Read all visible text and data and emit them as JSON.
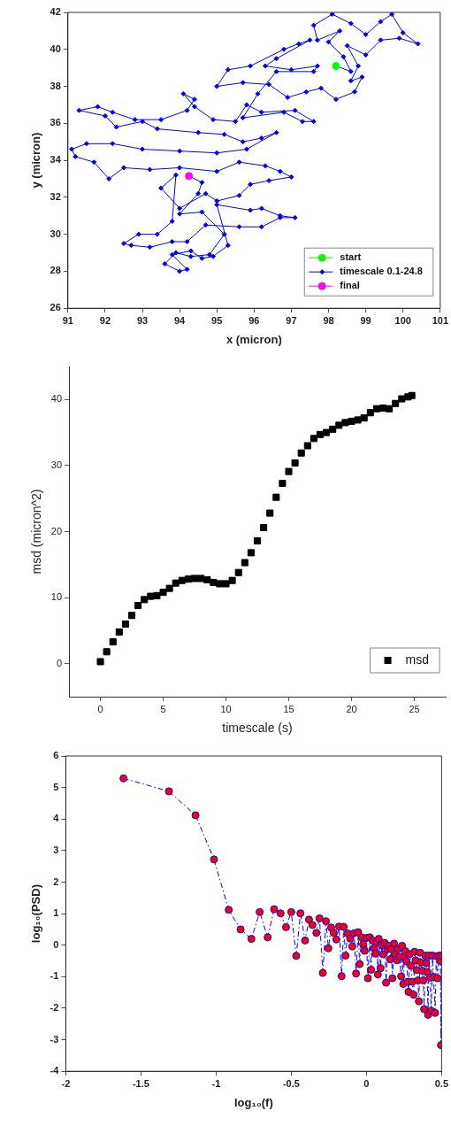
{
  "chart_data": [
    {
      "type": "line",
      "xlabel": "x (micron)",
      "ylabel": "y (micron)",
      "xlim": [
        91,
        101
      ],
      "xticks": [
        91,
        92,
        93,
        94,
        95,
        96,
        97,
        98,
        99,
        100,
        101
      ],
      "ylim": [
        26,
        42
      ],
      "yticks": [
        26,
        28,
        30,
        32,
        34,
        36,
        38,
        40,
        42
      ],
      "legend": "bottom right",
      "series": [
        {
          "name": "start",
          "type": "scatter",
          "marker": "circle",
          "color": "#00ff00",
          "x": [
            98.2
          ],
          "values": [
            39.1
          ]
        },
        {
          "name": "timescale 0.1-24.8",
          "marker": "diamond",
          "color": "#0000ff",
          "x": [
            98.2,
            98.6,
            98.4,
            98.0,
            98.3,
            97.7,
            97.6,
            98.1,
            98.6,
            99.0,
            99.4,
            99.7,
            100.0,
            100.4,
            99.9,
            99.4,
            99.0,
            98.5,
            98.8,
            98.6,
            98.9,
            98.7,
            98.2,
            97.8,
            97.4,
            96.9,
            96.4,
            95.7,
            95.0,
            95.3,
            95.9,
            96.8,
            97.2,
            97.5,
            96.6,
            96.3,
            97.0,
            97.7,
            97.6,
            96.6,
            96.1,
            95.7,
            96.8,
            97.3,
            97.6,
            97.1,
            96.2,
            95.8,
            95.5,
            94.9,
            94.4,
            94.1,
            94.4,
            94.2,
            93.5,
            92.8,
            92.2,
            91.8,
            91.3,
            92.0,
            92.3,
            93.0,
            93.4,
            94.5,
            95.2,
            95.7,
            96.2,
            96.6,
            95.8,
            95.0,
            94.0,
            93.0,
            92.2,
            91.5,
            91.1,
            91.2,
            91.7,
            92.1,
            92.5,
            93.2,
            94.0,
            95.0,
            95.6,
            96.3,
            96.7,
            97.0,
            96.4,
            95.9,
            95.6,
            95.0,
            94.7,
            94.0,
            93.5,
            93.9,
            93.8,
            93.4,
            92.9,
            92.5,
            92.7,
            93.2,
            93.8,
            94.2,
            94.7,
            95.6,
            96.2,
            96.7,
            97.1,
            96.7,
            96.2,
            95.9,
            95.0,
            95.3,
            94.9,
            94.6,
            94.3,
            93.8,
            94.2,
            94.0,
            93.6,
            93.9,
            94.3,
            94.8,
            95.2,
            94.6,
            94.0,
            94.5,
            94.6,
            94.25
          ],
          "values": [
            39.1,
            38.8,
            39.6,
            40.4,
            41.0,
            40.5,
            41.3,
            41.9,
            41.4,
            40.8,
            41.5,
            41.9,
            40.9,
            40.3,
            40.6,
            40.5,
            39.7,
            40.2,
            39.1,
            38.3,
            38.5,
            37.7,
            37.3,
            37.9,
            37.7,
            37.4,
            38.1,
            38.2,
            38.0,
            38.9,
            39.1,
            40.0,
            40.3,
            40.5,
            39.5,
            39.1,
            38.9,
            39.1,
            38.8,
            38.8,
            37.6,
            36.3,
            36.6,
            36.1,
            36.1,
            36.7,
            36.6,
            37.0,
            36.1,
            36.2,
            36.9,
            37.6,
            37.3,
            36.7,
            36.2,
            36.2,
            36.6,
            36.9,
            36.7,
            36.4,
            35.8,
            36.1,
            35.7,
            35.5,
            35.4,
            35.0,
            35.2,
            35.5,
            34.6,
            34.4,
            34.5,
            34.6,
            34.9,
            34.9,
            34.6,
            34.2,
            33.9,
            33.0,
            33.6,
            33.5,
            33.6,
            33.4,
            33.9,
            33.7,
            33.4,
            33.1,
            32.9,
            32.7,
            32.1,
            31.8,
            32.2,
            31.4,
            32.5,
            33.2,
            30.7,
            30.0,
            30.0,
            29.5,
            29.4,
            29.3,
            29.6,
            29.6,
            30.5,
            30.4,
            30.4,
            30.9,
            30.9,
            31.0,
            31.4,
            31.3,
            31.6,
            29.4,
            28.8,
            28.7,
            29.1,
            28.9,
            28.1,
            28.0,
            28.4,
            29.0,
            28.8,
            28.9,
            30.0,
            31.2,
            31.1,
            32.2,
            32.8,
            33.15
          ]
        },
        {
          "name": "final",
          "type": "scatter",
          "marker": "circle",
          "color": "#ff00ff",
          "x": [
            94.25
          ],
          "values": [
            33.15
          ]
        }
      ]
    },
    {
      "type": "scatter",
      "xlabel": "timescale (s)",
      "ylabel": "msd (micron^2)",
      "xlim": [
        -2.5,
        27.5
      ],
      "xticks": [
        0,
        5,
        10,
        15,
        20,
        25
      ],
      "ylim": [
        -5,
        45
      ],
      "yticks": [
        0,
        10,
        20,
        30,
        40
      ],
      "legend": "bottom right",
      "marker": "square",
      "series": [
        {
          "name": "msd",
          "color": "#000000",
          "x": [
            0,
            0.5,
            1,
            1.5,
            2,
            2.5,
            3,
            3.5,
            4,
            4.5,
            5,
            5.5,
            6,
            6.5,
            7,
            7.5,
            8,
            8.5,
            9,
            9.5,
            10,
            10.5,
            11,
            11.5,
            12,
            12.5,
            13,
            13.5,
            14,
            14.5,
            15,
            15.5,
            16,
            16.5,
            17,
            17.5,
            18,
            18.5,
            19,
            19.5,
            20,
            20.5,
            21,
            21.5,
            22,
            22.5,
            23,
            23.5,
            24,
            24.5,
            24.8
          ],
          "values": [
            0.3,
            1.8,
            3.3,
            4.8,
            6,
            7.3,
            8.8,
            9.7,
            10.2,
            10.3,
            10.8,
            11.4,
            12.2,
            12.6,
            12.8,
            12.9,
            12.9,
            12.7,
            12.3,
            12.1,
            12.1,
            12.6,
            13.8,
            15.3,
            16.8,
            18.6,
            20.6,
            22.8,
            25.2,
            27.3,
            29.1,
            30.4,
            31.9,
            33.0,
            34.1,
            34.7,
            35.0,
            35.5,
            36.1,
            36.5,
            36.7,
            36.9,
            37.2,
            38.0,
            38.6,
            38.7,
            38.6,
            39.4,
            40.1,
            40.4,
            40.6
          ]
        }
      ]
    },
    {
      "type": "line",
      "xlabel": "log₁₀(f)",
      "ylabel": "log₁₀(PSD)",
      "xlim": [
        -2,
        0.5
      ],
      "xticks": [
        -2,
        -1.5,
        -1,
        -0.5,
        0,
        0.5
      ],
      "ylim": [
        -4,
        6
      ],
      "yticks": [
        -4,
        -3,
        -2,
        -1,
        0,
        1,
        2,
        3,
        4,
        5,
        6
      ],
      "marker": "circle",
      "line_style": "dashed",
      "series": [
        {
          "color": "#0000ff",
          "x": [
            -1.616,
            -1.314,
            -1.137,
            -1.014,
            -0.916,
            -0.837,
            -0.765,
            -0.71,
            -0.657,
            -0.614,
            -0.571,
            -0.535,
            -0.5,
            -0.467,
            -0.439,
            -0.408,
            -0.382,
            -0.359,
            -0.333,
            -0.312,
            -0.29,
            -0.269,
            -0.253,
            -0.235,
            -0.218,
            -0.2,
            -0.182,
            -0.165,
            -0.151,
            -0.139,
            -0.124,
            -0.108,
            -0.094,
            -0.082,
            -0.069,
            -0.055,
            -0.045,
            -0.033,
            -0.022,
            -0.012,
            0.0,
            0.01,
            0.022,
            0.031,
            0.041,
            0.051,
            0.061,
            0.071,
            0.076,
            0.082,
            0.094,
            0.102,
            0.112,
            0.122,
            0.131,
            0.139,
            0.149,
            0.157,
            0.165,
            0.173,
            0.184,
            0.192,
            0.204,
            0.212,
            0.222,
            0.231,
            0.237,
            0.245,
            0.253,
            0.259,
            0.267,
            0.275,
            0.28,
            0.288,
            0.296,
            0.304,
            0.314,
            0.32,
            0.327,
            0.335,
            0.343,
            0.349,
            0.357,
            0.363,
            0.371,
            0.378,
            0.384,
            0.392,
            0.398,
            0.404,
            0.41,
            0.416,
            0.424,
            0.431,
            0.439,
            0.447,
            0.457,
            0.465,
            0.473,
            0.484,
            0.492,
            0.496,
            0.5
          ],
          "values": [
            5.29,
            4.88,
            4.12,
            2.72,
            1.12,
            0.5,
            0.2,
            1.05,
            0.25,
            1.14,
            1.01,
            0.57,
            1.05,
            -0.34,
            1.01,
            0.15,
            0.81,
            0.64,
            0.39,
            0.85,
            -0.88,
            0.76,
            -0.1,
            0.56,
            0.39,
            0.18,
            0.59,
            -0.98,
            0.58,
            -0.33,
            0.37,
            0.21,
            -0.04,
            0.38,
            -0.9,
            0.41,
            -0.6,
            0.25,
            0.03,
            -0.18,
            0.23,
            -1.05,
            0.25,
            -0.78,
            0.15,
            -0.1,
            -0.27,
            0.1,
            -0.93,
            0.2,
            -0.73,
            0.0,
            -0.29,
            0.07,
            -1.19,
            -0.13,
            -0.02,
            -0.45,
            -0.13,
            -1.05,
            0.05,
            -0.27,
            -0.48,
            -0.12,
            -0.37,
            -0.99,
            -0.02,
            -1.23,
            -0.37,
            -0.19,
            -0.52,
            -1.16,
            -1.48,
            -0.28,
            -0.65,
            -1.16,
            -1.57,
            -0.21,
            -0.48,
            -0.79,
            -1.12,
            -1.78,
            -0.24,
            -0.55,
            -0.81,
            -1.12,
            -2.03,
            -0.33,
            -0.57,
            -0.85,
            -2.21,
            -0.33,
            -1.03,
            -2.08,
            -0.33,
            -1.01,
            -2.15,
            -0.35,
            -1.05,
            -0.33,
            -0.5,
            -3.17,
            -0.33
          ]
        }
      ]
    }
  ]
}
